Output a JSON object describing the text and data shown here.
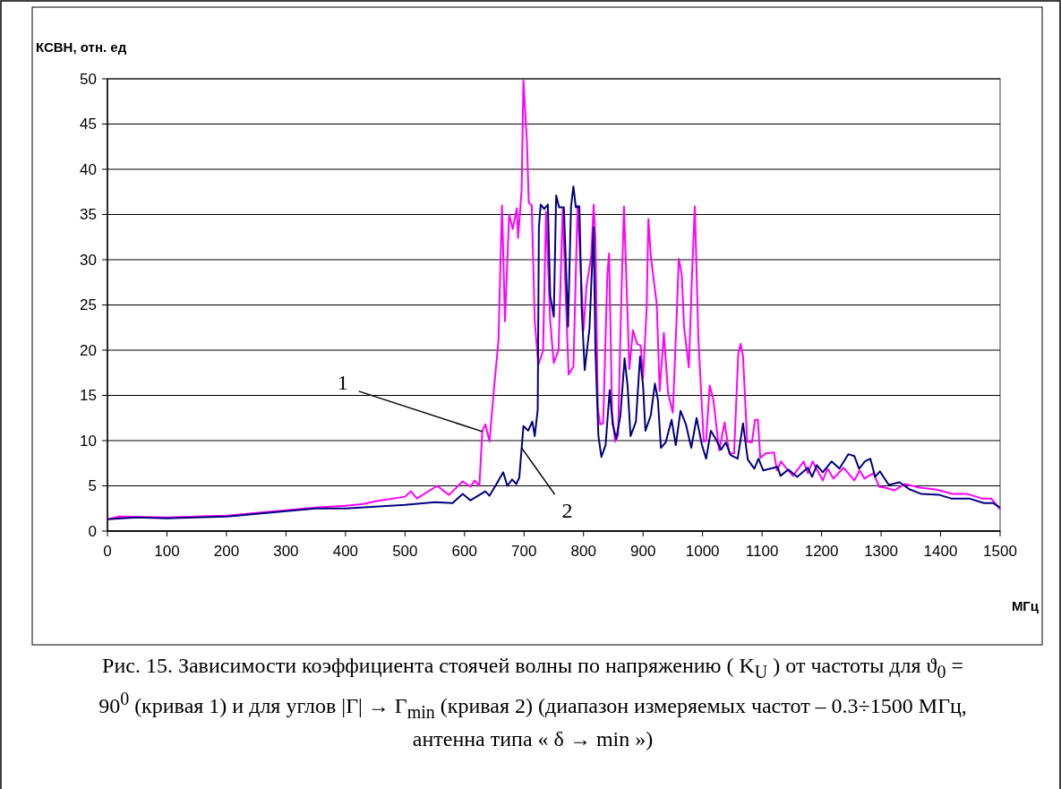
{
  "chart_data": {
    "type": "line",
    "ylabel": "КСВН, отн. ед",
    "xlabel": "МГц",
    "xlim": [
      0,
      1500
    ],
    "xticks": [
      0,
      100,
      200,
      300,
      400,
      500,
      600,
      700,
      800,
      900,
      1000,
      1100,
      1200,
      1300,
      1400,
      1500
    ],
    "ylim": [
      0,
      50
    ],
    "yticks": [
      0,
      5,
      10,
      15,
      20,
      25,
      30,
      35,
      40,
      45,
      50
    ],
    "grid": "y",
    "marker": "none",
    "line_style": "solid",
    "series": [
      {
        "color": "#ff00ff",
        "x": [
          0,
          20,
          100,
          200,
          250,
          300,
          350,
          400,
          430,
          450,
          500,
          510,
          520,
          554,
          574,
          597,
          610,
          617,
          625,
          630,
          635,
          642,
          650,
          657,
          663,
          668,
          675,
          681,
          688,
          690,
          696,
          699,
          705,
          708,
          713,
          718,
          724,
          732,
          737,
          744,
          750,
          758,
          765,
          770,
          775,
          783,
          790,
          795,
          800,
          805,
          813,
          817,
          820,
          824,
          828,
          833,
          840,
          843,
          848,
          853,
          858,
          863,
          868,
          872,
          877,
          883,
          890,
          896,
          900,
          906,
          909,
          913,
          923,
          928,
          935,
          942,
          950,
          957,
          960,
          965,
          969,
          977,
          982,
          987,
          993,
          1002,
          1006,
          1012,
          1018,
          1028,
          1037,
          1045,
          1053,
          1060,
          1064,
          1068,
          1075,
          1083,
          1088,
          1093,
          1097,
          1106,
          1120,
          1125,
          1132,
          1140,
          1152,
          1170,
          1177,
          1185,
          1202,
          1210,
          1220,
          1237,
          1255,
          1264,
          1272,
          1287,
          1297,
          1307,
          1322,
          1340,
          1365,
          1392,
          1420,
          1445,
          1470,
          1485,
          1500
        ],
        "values": [
          1.3,
          1.6,
          1.5,
          1.7,
          2.0,
          2.3,
          2.6,
          2.8,
          3.0,
          3.3,
          3.8,
          4.4,
          3.6,
          5.0,
          4.0,
          5.5,
          4.9,
          5.6,
          5.0,
          11.1,
          11.8,
          9.9,
          16.1,
          21,
          36,
          23.2,
          35,
          33.4,
          35.7,
          32.4,
          37.7,
          49.8,
          42.9,
          36.3,
          36,
          23.2,
          18.4,
          19.9,
          35.3,
          23.2,
          18.6,
          20,
          35.6,
          26.1,
          17.3,
          18.2,
          36,
          29.4,
          22.2,
          27.1,
          30.4,
          36.1,
          32.4,
          13.6,
          11.8,
          11.9,
          28.4,
          30.7,
          13,
          9.9,
          10.6,
          24.5,
          35.9,
          27.8,
          17.9,
          22.2,
          20.7,
          20.5,
          16.9,
          24.5,
          34.5,
          30.4,
          25.1,
          15.5,
          21.9,
          15.3,
          13.1,
          24.5,
          30.1,
          28.4,
          22.5,
          18.1,
          27.8,
          35.9,
          21.2,
          9.9,
          10,
          16.1,
          14.6,
          8.9,
          12,
          8.6,
          8.6,
          19.6,
          20.7,
          19.3,
          9.9,
          9.8,
          12.3,
          12.3,
          8.1,
          8.6,
          8.7,
          6.7,
          7.7,
          7.0,
          6.1,
          7.7,
          6.4,
          7.7,
          5.6,
          6.9,
          5.8,
          7.0,
          5.6,
          6.7,
          5.8,
          6.4,
          4.9,
          4.8,
          4.5,
          5.2,
          4.8,
          4.6,
          4.1,
          4.1,
          3.6,
          3.6,
          2.4
        ]
      },
      {
        "color": "#000080",
        "x": [
          0,
          50,
          100,
          200,
          300,
          350,
          400,
          450,
          500,
          550,
          580,
          597,
          610,
          635,
          642,
          652,
          665,
          672,
          680,
          687,
          692,
          699,
          707,
          714,
          718,
          723,
          725,
          728,
          734,
          740,
          744,
          750,
          754,
          759,
          767,
          774,
          779,
          783,
          787,
          793,
          797,
          802,
          810,
          817,
          820,
          825,
          830,
          837,
          844,
          849,
          855,
          862,
          869,
          874,
          879,
          888,
          895,
          900,
          904,
          913,
          920,
          925,
          930,
          938,
          948,
          955,
          963,
          972,
          981,
          990,
          999,
          1006,
          1014,
          1022,
          1031,
          1039,
          1047,
          1059,
          1068,
          1076,
          1087,
          1094,
          1102,
          1126,
          1131,
          1144,
          1159,
          1177,
          1184,
          1192,
          1202,
          1217,
          1230,
          1245,
          1255,
          1263,
          1273,
          1282,
          1290,
          1298,
          1313,
          1331,
          1348,
          1368,
          1398,
          1418,
          1448,
          1473,
          1488,
          1500
        ],
        "values": [
          1.3,
          1.5,
          1.4,
          1.6,
          2.2,
          2.5,
          2.5,
          2.7,
          2.9,
          3.2,
          3.1,
          4.1,
          3.4,
          4.4,
          3.9,
          5.0,
          6.5,
          5.0,
          5.7,
          5.2,
          5.9,
          11.6,
          11.1,
          12.1,
          10.5,
          13.4,
          33.6,
          36.1,
          35.6,
          36.1,
          26,
          23.7,
          37.1,
          35.8,
          35.8,
          22.6,
          35.9,
          38.1,
          35.8,
          35.9,
          24.4,
          17.8,
          22.4,
          33.6,
          20,
          10.5,
          8.2,
          9.5,
          15.6,
          11.8,
          10.2,
          12.8,
          19.1,
          16.1,
          10.5,
          12.1,
          19.3,
          16.1,
          11.1,
          12.8,
          16.3,
          14.5,
          9.2,
          9.8,
          12.3,
          9.5,
          13.3,
          11.8,
          9.2,
          12.5,
          9.5,
          8.0,
          11.1,
          10.2,
          9.0,
          9.8,
          8.4,
          8.0,
          11.9,
          7.9,
          6.9,
          8.0,
          6.7,
          7.1,
          6.1,
          6.8,
          6.0,
          7.0,
          6.0,
          7.3,
          6.5,
          7.7,
          6.9,
          8.5,
          8.3,
          6.9,
          7.7,
          8.0,
          6.0,
          6.6,
          5.1,
          5.4,
          4.6,
          4.1,
          4.0,
          3.6,
          3.6,
          3.1,
          3.1,
          2.6
        ]
      }
    ],
    "annotations": [
      {
        "text": "1",
        "x": 630,
        "y": 11
      },
      {
        "text": "2",
        "x": 696,
        "y": 9.2
      },
      "Рис. 15. Зависимости коэффициента стоячей волны по напряжению ( K$_{U}$ ) от частоты для  ϑ$_{0}$ = 90$^{0}$  (кривая 1) и для углов |Γ| → Γ$_{min}$  (кривая 2)   (диапазон измеряемых частот – 0.3÷1500 МГц, антенна типа « δ → min »)"
    ]
  }
}
